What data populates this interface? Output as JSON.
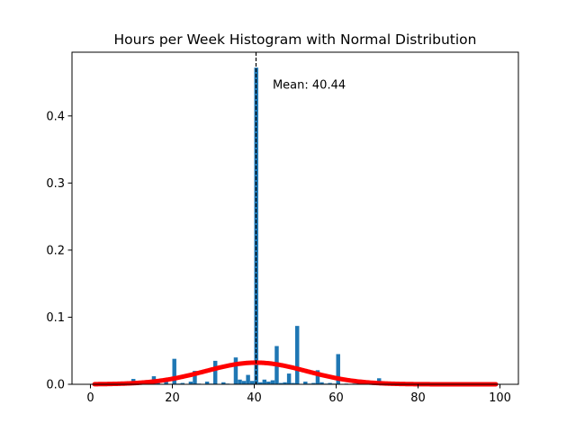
{
  "chart_data": {
    "type": "bar",
    "title": "Hours per Week Histogram with Normal Distribution",
    "xlabel": "",
    "ylabel": "",
    "xlim": [
      -4.5,
      104.5
    ],
    "ylim": [
      0,
      0.495
    ],
    "x_ticks": [
      0,
      20,
      40,
      60,
      80,
      100
    ],
    "y_ticks": [
      0.0,
      0.1,
      0.2,
      0.3,
      0.4
    ],
    "x_tick_labels": [
      "0",
      "20",
      "40",
      "60",
      "80",
      "100"
    ],
    "y_tick_labels": [
      "0.0",
      "0.1",
      "0.2",
      "0.3",
      "0.4"
    ],
    "bin_width": 0.98,
    "bar_color": "#1f77b4",
    "histogram": {
      "name": "Hours per Week",
      "bin_starts": [
        1,
        2,
        3,
        4,
        5,
        6,
        7,
        8,
        9,
        10,
        11,
        12,
        14,
        15,
        16,
        18,
        20,
        21,
        22,
        24,
        25,
        26,
        28,
        29,
        30,
        32,
        33,
        35,
        36,
        37,
        38,
        39,
        40,
        41,
        42,
        43,
        44,
        45,
        46,
        47,
        48,
        49,
        50,
        52,
        53,
        54,
        55,
        56,
        57,
        58,
        59,
        60,
        62,
        64,
        65,
        66,
        68,
        70,
        72,
        75,
        80,
        84,
        90,
        96,
        98
      ],
      "values": [
        0.001,
        0.001,
        0.002,
        0.002,
        0.002,
        0.001,
        0.001,
        0.003,
        0.001,
        0.008,
        0.001,
        0.004,
        0.002,
        0.012,
        0.004,
        0.004,
        0.038,
        0.001,
        0.002,
        0.004,
        0.02,
        0.001,
        0.004,
        0.001,
        0.035,
        0.003,
        0.001,
        0.04,
        0.007,
        0.005,
        0.014,
        0.005,
        0.472,
        0.003,
        0.007,
        0.004,
        0.006,
        0.057,
        0.002,
        0.003,
        0.016,
        0.002,
        0.087,
        0.004,
        0.001,
        0.002,
        0.021,
        0.003,
        0.001,
        0.002,
        0.001,
        0.045,
        0.001,
        0.001,
        0.007,
        0.001,
        0.002,
        0.009,
        0.002,
        0.003,
        0.003,
        0.001,
        0.002,
        0.001,
        0.003
      ]
    },
    "normal_curve": {
      "name": "Normal distribution",
      "mean": 40.44,
      "std": 12.35,
      "x_range": [
        1,
        99
      ],
      "color": "#ff0000"
    },
    "mean_line": {
      "x": 40.44,
      "style": "dashed",
      "color": "#000000"
    },
    "annotations": [
      {
        "text": "Mean: 40.44",
        "x": 44.5,
        "y": 0.447
      }
    ],
    "grid": false
  }
}
